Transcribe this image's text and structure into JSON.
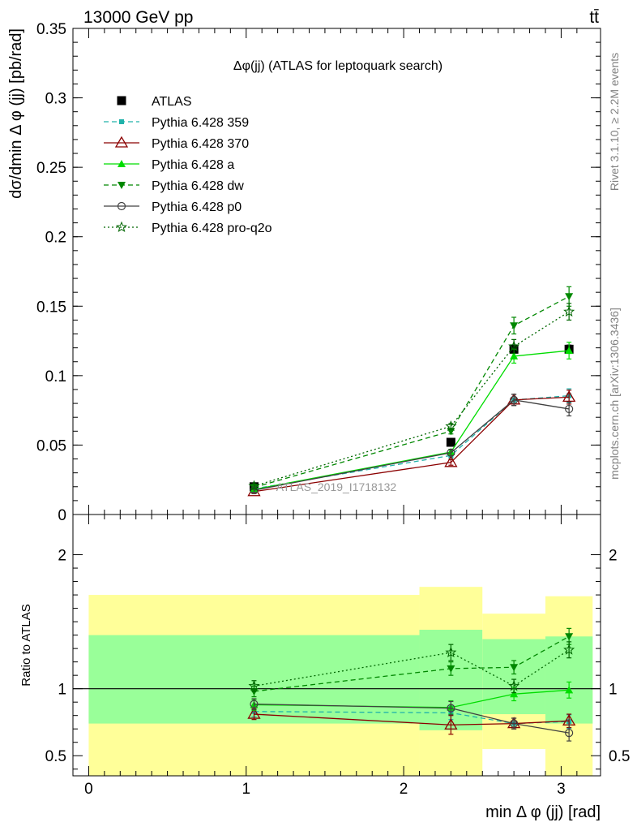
{
  "header": {
    "energy_label": "13000 GeV pp",
    "process_label": "tt̄",
    "rivet_label": "Rivet 3.1.10, ≥ 2.2M events",
    "mcplots_label": "mcplots.cern.ch [arXiv:1306.3436]",
    "analysis_watermark": "ATLAS_2019_I1718132"
  },
  "colors": {
    "ATLAS": "#000000",
    "p359": "#20b2aa",
    "p370": "#8b0000",
    "pa": "#00dd00",
    "pdw": "#008800",
    "pp0": "#404040",
    "pq2o": "#006600",
    "band_yellow": "#ffff99",
    "band_green": "#99ff99"
  },
  "chart_data": [
    {
      "type": "line",
      "title": "Δφ(jj) (ATLAS for leptoquark search)",
      "xlabel": "min Δ φ (jj) [rad]",
      "ylabel": "dσ/dmin Δ φ (jj) [pb/rad]",
      "xlim": [
        -0.1,
        3.25
      ],
      "ylim": [
        0,
        0.35
      ],
      "yticks": [
        0,
        0.05,
        0.1,
        0.15,
        0.2,
        0.25,
        0.3,
        0.35
      ],
      "ytick_labels": [
        "0",
        "0.05",
        "0.1",
        "0.15",
        "0.2",
        "0.25",
        "0.3",
        "0.35"
      ],
      "legend_position": "top-left",
      "x": [
        1.05,
        2.3,
        2.7,
        3.05
      ],
      "series": [
        {
          "name": "ATLAS",
          "key": "ATLAS",
          "values": [
            0.02,
            0.052,
            0.119,
            0.119
          ],
          "errors": [
            0.001,
            0.002,
            0.003,
            0.003
          ],
          "marker": "square",
          "dash": "none"
        },
        {
          "name": "Pythia 6.428 359",
          "key": "p359",
          "values": [
            0.0185,
            0.0425,
            0.0825,
            0.0855
          ],
          "errors": [
            0.0015,
            0.002,
            0.004,
            0.005
          ],
          "marker": "small-square",
          "dash": "dashed"
        },
        {
          "name": "Pythia 6.428 370",
          "key": "p370",
          "values": [
            0.0165,
            0.0375,
            0.0825,
            0.0845
          ],
          "errors": [
            0.0015,
            0.002,
            0.004,
            0.005
          ],
          "marker": "open-triangle",
          "dash": "solid"
        },
        {
          "name": "Pythia 6.428 a",
          "key": "pa",
          "values": [
            0.018,
            0.045,
            0.114,
            0.118
          ],
          "errors": [
            0.0015,
            0.002,
            0.005,
            0.006
          ],
          "marker": "triangle",
          "dash": "solid"
        },
        {
          "name": "Pythia 6.428 dw",
          "key": "pdw",
          "values": [
            0.0195,
            0.06,
            0.136,
            0.157
          ],
          "errors": [
            0.0015,
            0.002,
            0.006,
            0.007
          ],
          "marker": "triangle-down",
          "dash": "dashed"
        },
        {
          "name": "Pythia 6.428 p0",
          "key": "pp0",
          "values": [
            0.0175,
            0.0445,
            0.0825,
            0.076
          ],
          "errors": [
            0.0015,
            0.002,
            0.004,
            0.005
          ],
          "marker": "open-circle",
          "dash": "solid"
        },
        {
          "name": "Pythia 6.428 pro-q2o",
          "key": "pq2o",
          "values": [
            0.0205,
            0.0635,
            0.121,
            0.146
          ],
          "errors": [
            0.0015,
            0.002,
            0.005,
            0.006
          ],
          "marker": "open-star",
          "dash": "dotted"
        }
      ]
    },
    {
      "type": "line",
      "xlabel": "min Δ φ (jj) [rad]",
      "ylabel": "Ratio to ATLAS",
      "xlim": [
        -0.1,
        3.25
      ],
      "ylim": [
        0.35,
        2.3
      ],
      "yticks": [
        0.5,
        1,
        2
      ],
      "ytick_labels": [
        "0.5",
        "1",
        "2"
      ],
      "xticks": [
        0,
        1,
        2,
        3
      ],
      "xtick_labels": [
        "0",
        "1",
        "2",
        "3"
      ],
      "bands": [
        {
          "x0": 0,
          "x1": 2.1,
          "yellow": [
            0.35,
            1.7
          ],
          "green": [
            0.74,
            1.4
          ]
        },
        {
          "x0": 2.1,
          "x1": 2.5,
          "yellow": [
            0.35,
            1.76
          ],
          "green": [
            0.69,
            1.44
          ]
        },
        {
          "x0": 2.5,
          "x1": 2.9,
          "yellow": [
            0.55,
            1.56
          ],
          "green": [
            0.81,
            1.37
          ]
        },
        {
          "x0": 2.9,
          "x1": 3.2,
          "yellow": [
            0.35,
            1.69
          ],
          "green": [
            0.74,
            1.39
          ]
        }
      ],
      "x": [
        1.05,
        2.3,
        2.7,
        3.05
      ],
      "series": [
        {
          "name": "Pythia 6.428 359",
          "key": "p359",
          "values": [
            0.83,
            0.82,
            0.74,
            0.755
          ],
          "errors": [
            0.04,
            0.05,
            0.04,
            0.05
          ],
          "marker": "small-square",
          "dash": "dashed"
        },
        {
          "name": "Pythia 6.428 370",
          "key": "p370",
          "values": [
            0.81,
            0.73,
            0.74,
            0.76
          ],
          "errors": [
            0.04,
            0.07,
            0.04,
            0.05
          ],
          "marker": "open-triangle",
          "dash": "solid"
        },
        {
          "name": "Pythia 6.428 a",
          "key": "pa",
          "values": [
            0.88,
            0.86,
            0.96,
            0.99
          ],
          "errors": [
            0.04,
            0.05,
            0.05,
            0.06
          ],
          "marker": "triangle",
          "dash": "solid"
        },
        {
          "name": "Pythia 6.428 dw",
          "key": "pdw",
          "values": [
            0.98,
            1.15,
            1.16,
            1.39
          ],
          "errors": [
            0.04,
            0.05,
            0.05,
            0.06
          ],
          "marker": "triangle-down",
          "dash": "dashed"
        },
        {
          "name": "Pythia 6.428 p0",
          "key": "pp0",
          "values": [
            0.885,
            0.855,
            0.74,
            0.67
          ],
          "errors": [
            0.04,
            0.05,
            0.04,
            0.06
          ],
          "marker": "open-circle",
          "dash": "solid"
        },
        {
          "name": "Pythia 6.428 pro-q2o",
          "key": "pq2o",
          "values": [
            1.02,
            1.27,
            1.02,
            1.29
          ],
          "errors": [
            0.04,
            0.06,
            0.05,
            0.06
          ],
          "marker": "open-star",
          "dash": "dotted"
        }
      ]
    }
  ]
}
